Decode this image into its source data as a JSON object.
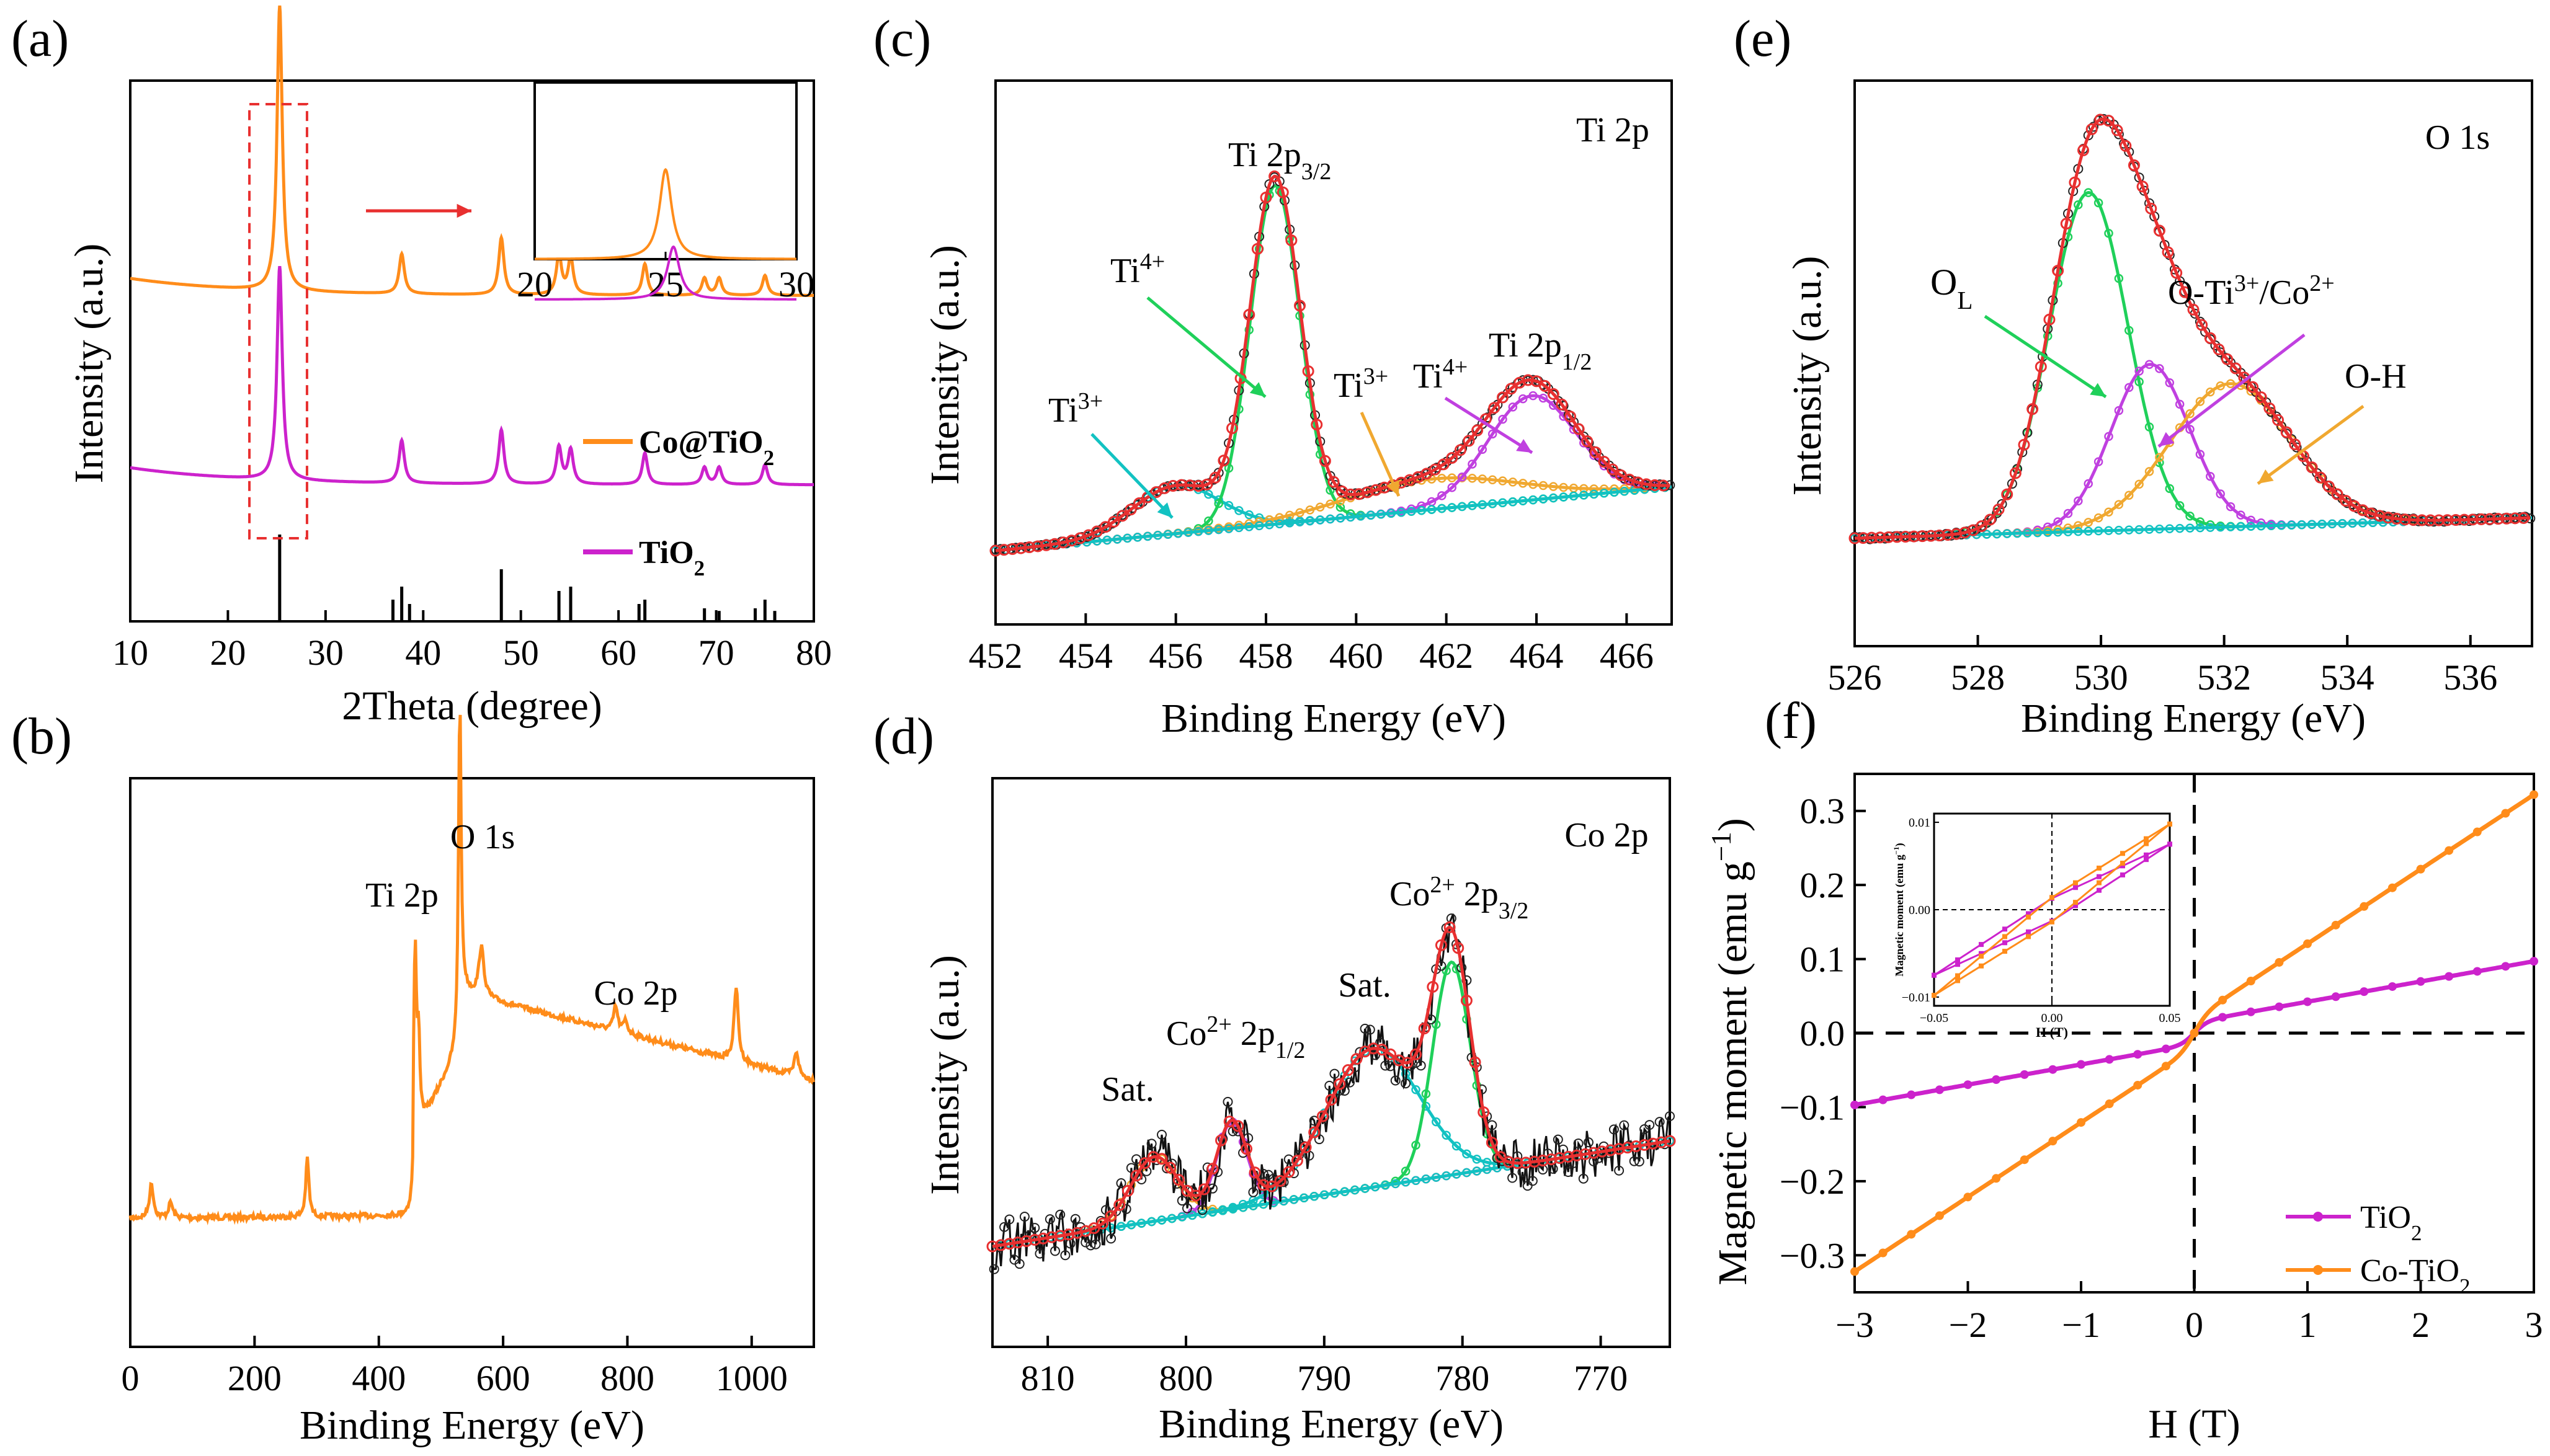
{
  "panels": {
    "a": {
      "label": "(a)"
    },
    "b": {
      "label": "(b)"
    },
    "c": {
      "label": "(c)"
    },
    "d": {
      "label": "(d)"
    },
    "e": {
      "label": "(e)"
    },
    "f": {
      "label": "(f)"
    }
  },
  "colors": {
    "orange": "#FF8C1A",
    "magenta": "#CC22CC",
    "red": "#E83030",
    "green": "#1FD05A",
    "teal": "#12C2C2",
    "purple": "#C040E0",
    "gold": "#F0A830",
    "black": "#000000"
  },
  "chart_data": [
    {
      "id": "a",
      "type": "line",
      "title": "",
      "xlabel": "2Theta (degree)",
      "ylabel": "Intensity (a.u.)",
      "xlim": [
        10,
        80
      ],
      "xticks": [
        "10",
        "20",
        "30",
        "40",
        "50",
        "60",
        "70",
        "80"
      ],
      "peaks_2theta": [
        25.3,
        37.8,
        48.0,
        53.9,
        55.1,
        62.7,
        68.8,
        70.3,
        75.0
      ],
      "series": [
        {
          "name": "Co@TiO2",
          "legend_main": "Co@TiO",
          "legend_sub": "2",
          "color": "orange",
          "baseline": 0.62,
          "heights": [
            1.0,
            0.14,
            0.2,
            0.14,
            0.13,
            0.11,
            0.06,
            0.06,
            0.07
          ]
        },
        {
          "name": "TiO2",
          "legend_main": "TiO",
          "legend_sub": "2",
          "color": "magenta",
          "baseline": 0.27,
          "heights": [
            0.75,
            0.15,
            0.19,
            0.13,
            0.12,
            0.11,
            0.06,
            0.06,
            0.07
          ]
        }
      ],
      "reference_lines": {
        "positions": [
          25.3,
          36.9,
          37.8,
          38.6,
          48.0,
          53.9,
          55.1,
          62.1,
          62.7,
          68.8,
          70.3,
          74.0,
          75.0,
          76.0
        ],
        "heights": [
          1.0,
          0.25,
          0.4,
          0.2,
          0.6,
          0.35,
          0.4,
          0.2,
          0.25,
          0.15,
          0.12,
          0.15,
          0.25,
          0.12
        ]
      },
      "inset": {
        "xlim": [
          20,
          30
        ],
        "xticks": [
          "20",
          "25",
          "30"
        ],
        "peak_orange": 25.0,
        "peak_magenta": 25.3
      }
    },
    {
      "id": "b",
      "type": "line",
      "xlabel": "Binding Energy (eV)",
      "ylabel": "",
      "xlim": [
        0,
        1100
      ],
      "xticks": [
        "0",
        "200",
        "400",
        "600",
        "800",
        "1000"
      ],
      "annotations": [
        "Ti 2p",
        "O 1s",
        "Co 2p"
      ]
    },
    {
      "id": "c",
      "type": "line",
      "title": "Ti 2p",
      "xlabel": "Binding Energy (eV)",
      "ylabel": "Intensity (a.u.)",
      "xlim": [
        452,
        467
      ],
      "xticks": [
        "452",
        "454",
        "456",
        "458",
        "460",
        "462",
        "464",
        "466"
      ],
      "components": [
        {
          "name": "Ti3+ 2p3/2",
          "center": 456.0,
          "amplitude": 0.11,
          "fwhm": 2.3,
          "color": "teal"
        },
        {
          "name": "Ti4+ 2p3/2",
          "center": 458.2,
          "amplitude": 0.78,
          "fwhm": 1.3,
          "color": "green"
        },
        {
          "name": "Ti3+ 2p1/2",
          "center": 461.7,
          "amplitude": 0.07,
          "fwhm": 4.5,
          "color": "gold"
        },
        {
          "name": "Ti4+ 2p1/2",
          "center": 463.9,
          "amplitude": 0.24,
          "fwhm": 2.3,
          "color": "purple"
        }
      ],
      "background": [
        0.0,
        0.15
      ],
      "labels": {
        "ti3_left": "Ti",
        "ti3_left_sup": "3+",
        "ti4_left": "Ti",
        "ti4_left_sup": "4+",
        "p32_main": "Ti 2p",
        "p32_sub": "3/2",
        "ti3_right": "Ti",
        "ti3_right_sup": "3+",
        "ti4_right": "Ti",
        "ti4_right_sup": "4+",
        "p12_main": "Ti 2p",
        "p12_sub": "1/2"
      }
    },
    {
      "id": "d",
      "type": "line",
      "title": "Co 2p",
      "xlabel": "Binding Energy (eV)",
      "ylabel": "Intensity (a.u.)",
      "xlim": [
        814,
        765
      ],
      "xticks": [
        "810",
        "800",
        "790",
        "780",
        "770"
      ],
      "components": [
        {
          "name": "Sat.",
          "center": 802.3,
          "amplitude": 0.2,
          "fwhm": 4.0,
          "color": "gold"
        },
        {
          "name": "Co2+ 2p1/2",
          "center": 796.7,
          "amplitude": 0.27,
          "fwhm": 2.6,
          "color": "purple"
        },
        {
          "name": "Sat.",
          "center": 786.5,
          "amplitude": 0.43,
          "fwhm": 8.0,
          "color": "teal"
        },
        {
          "name": "Co2+ 2p3/2",
          "center": 780.8,
          "amplitude": 0.66,
          "fwhm": 3.2,
          "color": "green"
        }
      ],
      "labels": {
        "sat1": "Sat.",
        "p12_main": "Co",
        "p12_sup": "2+",
        "p12_rest": " 2p",
        "p12_sub": "1/2",
        "sat2": "Sat.",
        "p32_main": "Co",
        "p32_sup": "2+",
        "p32_rest": " 2p",
        "p32_sub": "3/2"
      }
    },
    {
      "id": "e",
      "type": "line",
      "title": "O 1s",
      "xlabel": "Binding Energy (eV)",
      "ylabel": "Intensity (a.u.)",
      "xlim": [
        526,
        537
      ],
      "xticks": [
        "526",
        "528",
        "530",
        "532",
        "534",
        "536"
      ],
      "components": [
        {
          "name": "OL",
          "center": 529.8,
          "amplitude": 0.78,
          "fwhm": 1.5,
          "color": "green"
        },
        {
          "name": "O-Ti3+/Co2+",
          "center": 530.8,
          "amplitude": 0.38,
          "fwhm": 1.5,
          "color": "purple"
        },
        {
          "name": "O-H",
          "center": 532.1,
          "amplitude": 0.33,
          "fwhm": 2.3,
          "color": "gold"
        }
      ],
      "labels": {
        "ol_main": "O",
        "ol_sub": "L",
        "oti_1": "O-Ti",
        "oti_sup1": "3+",
        "oti_2": "/Co",
        "oti_sup2": "2+",
        "oh": "O-H"
      }
    },
    {
      "id": "f",
      "type": "line",
      "xlabel": "H (T)",
      "ylabel_main": "Magnetic moment (emu g",
      "ylabel_sup": "−1",
      "ylabel_end": ")",
      "xlim": [
        -3,
        3
      ],
      "ylim": [
        -0.35,
        0.35
      ],
      "xticks": [
        "−3",
        "−2",
        "−1",
        "0",
        "1",
        "2",
        "3"
      ],
      "yticks": [
        "−0.3",
        "−0.2",
        "−0.1",
        "0.0",
        "0.1",
        "0.2",
        "0.3"
      ],
      "series": [
        {
          "name": "TiO2",
          "legend_main": "TiO",
          "legend_sub": "2",
          "color": "magenta",
          "y_at_3": 0.097,
          "knee": 0.015
        },
        {
          "name": "Co-TiO2",
          "legend_main": "Co-TiO",
          "legend_sub": "2",
          "color": "orange",
          "y_at_3": 0.322,
          "knee": 0.02
        }
      ],
      "inset": {
        "xlabel": "H (T)",
        "ylabel": "Magnetic moment (emu g",
        "ylabel_sup": "−1",
        "ylabel_end": ")",
        "xlim": [
          -0.05,
          0.05
        ],
        "ylim": [
          -0.011,
          0.011
        ],
        "xticks": [
          "−0.05",
          "0.00",
          "0.05"
        ],
        "yticks": [
          "−0.01",
          "0.00",
          "0.01"
        ]
      }
    }
  ]
}
